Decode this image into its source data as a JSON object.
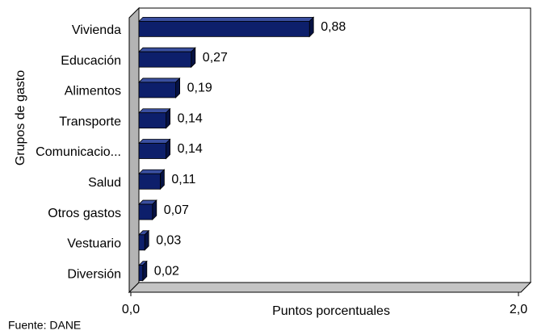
{
  "chart_data": {
    "type": "bar",
    "orientation": "horizontal",
    "categories": [
      "Vivienda",
      "Educación",
      "Alimentos",
      "Transporte",
      "Comunicacio...",
      "Salud",
      "Otros gastos",
      "Vestuario",
      "Diversión"
    ],
    "values": [
      0.88,
      0.27,
      0.19,
      0.14,
      0.14,
      0.11,
      0.07,
      0.03,
      0.02
    ],
    "value_labels": [
      "0,88",
      "0,27",
      "0,19",
      "0,14",
      "0,14",
      "0,11",
      "0,07",
      "0,03",
      "0,02"
    ],
    "color": "#0d1f6b",
    "xlim": [
      0,
      2
    ],
    "xticks": [
      {
        "value": 0,
        "label": "0,0"
      },
      {
        "value": 2,
        "label": "2,0"
      }
    ],
    "xlabel": "Puntos porcentuales",
    "ylabel": "Grupos de gasto",
    "source": "Fuente: DANE"
  }
}
